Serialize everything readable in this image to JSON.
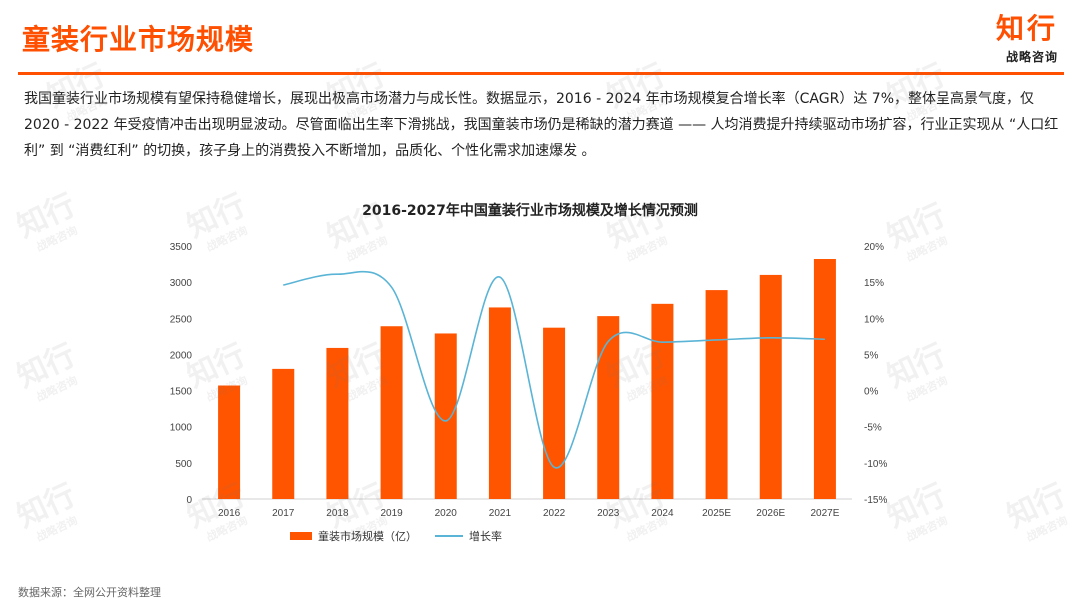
{
  "header": {
    "title": "童装行业市场规模",
    "logo_main": "知行",
    "logo_sub": "战略咨询"
  },
  "description": "我国童装行业市场规模有望保持稳健增长，展现出极高市场潜力与成长性。数据显示，2016 - 2024 年市场规模复合增长率（CAGR）达 7%，整体呈高景气度，仅 2020 - 2022 年受疫情冲击出现明显波动。尽管面临出生率下滑挑战，我国童装市场仍是稀缺的潜力赛道 —— 人均消费提升持续驱动市场扩容，行业正实现从 “人口红利” 到 “消费红利” 的切换，孩子身上的消费投入不断增加，品质化、个性化需求加速爆发 。",
  "source": "数据来源：全网公开资料整理",
  "watermark": {
    "main": "知行",
    "sub": "战略咨询"
  },
  "colors": {
    "accent": "#ff4f00",
    "bar": "#ff5500",
    "line": "#5ab4d6"
  },
  "chart_data": {
    "type": "bar",
    "title": "2016-2027年中国童装行业市场规模及增长情况预测",
    "categories": [
      "2016",
      "2017",
      "2018",
      "2019",
      "2020",
      "2021",
      "2022",
      "2023",
      "2024",
      "2025E",
      "2026E",
      "2027E"
    ],
    "series": [
      {
        "name": "童装市场规模（亿）",
        "type": "bar",
        "axis": "left",
        "values": [
          1570,
          1800,
          2090,
          2390,
          2290,
          2650,
          2370,
          2530,
          2700,
          2890,
          3100,
          3320
        ]
      },
      {
        "name": "增长率",
        "type": "line",
        "axis": "right",
        "values": [
          null,
          14.6,
          16.1,
          14.3,
          -4.2,
          15.7,
          -10.6,
          6.8,
          6.7,
          7.0,
          7.3,
          7.1
        ]
      }
    ],
    "y_left": {
      "min": 0,
      "max": 3500,
      "step": 500,
      "ticks": [
        "0",
        "500",
        "1000",
        "1500",
        "2000",
        "2500",
        "3000",
        "3500"
      ]
    },
    "y_right": {
      "min": -15,
      "max": 20,
      "step": 5,
      "ticks": [
        "-15%",
        "-10%",
        "-5%",
        "0%",
        "5%",
        "10%",
        "15%",
        "20%"
      ]
    },
    "grid": false,
    "legend": "bottom"
  }
}
